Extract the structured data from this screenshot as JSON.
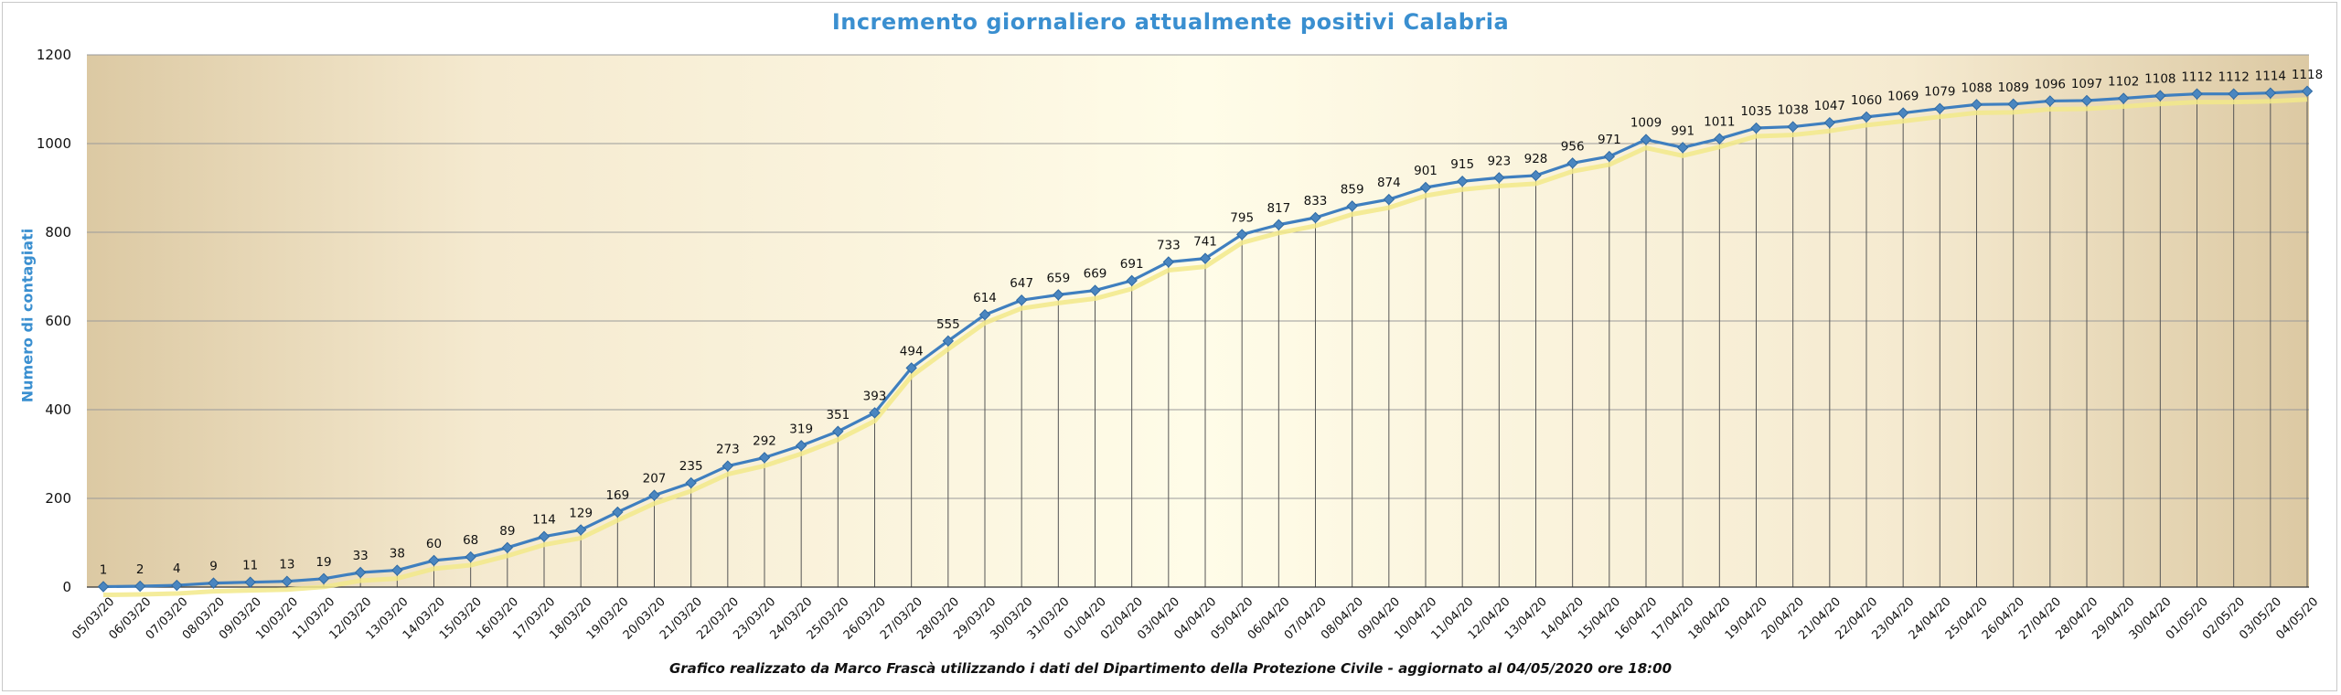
{
  "chart_data": {
    "type": "line",
    "title": "Incremento giornaliero attualmente positivi Calabria",
    "ylabel": "Numero di contagiati",
    "xlabel": "",
    "ylim": [
      0,
      1200
    ],
    "yticks": [
      0,
      200,
      400,
      600,
      800,
      1000,
      1200
    ],
    "grid": true,
    "legend": "none",
    "categories": [
      "05/03/20",
      "06/03/20",
      "07/03/20",
      "08/03/20",
      "09/03/20",
      "10/03/20",
      "11/03/20",
      "12/03/20",
      "13/03/20",
      "14/03/20",
      "15/03/20",
      "16/03/20",
      "17/03/20",
      "18/03/20",
      "19/03/20",
      "20/03/20",
      "21/03/20",
      "22/03/20",
      "23/03/20",
      "24/03/20",
      "25/03/20",
      "26/03/20",
      "27/03/20",
      "28/03/20",
      "29/03/20",
      "30/03/20",
      "31/03/20",
      "01/04/20",
      "02/04/20",
      "03/04/20",
      "04/04/20",
      "05/04/20",
      "06/04/20",
      "07/04/20",
      "08/04/20",
      "09/04/20",
      "10/04/20",
      "11/04/20",
      "12/04/20",
      "13/04/20",
      "14/04/20",
      "15/04/20",
      "16/04/20",
      "17/04/20",
      "18/04/20",
      "19/04/20",
      "20/04/20",
      "21/04/20",
      "22/04/20",
      "23/04/20",
      "24/04/20",
      "25/04/20",
      "26/04/20",
      "27/04/20",
      "28/04/20",
      "29/04/20",
      "30/04/20",
      "01/05/20",
      "02/05/20",
      "03/05/20",
      "04/05/20"
    ],
    "series": [
      {
        "values": [
          1,
          2,
          4,
          9,
          11,
          13,
          19,
          33,
          38,
          60,
          68,
          89,
          114,
          129,
          169,
          207,
          235,
          273,
          292,
          319,
          351,
          393,
          494,
          555,
          614,
          647,
          659,
          669,
          691,
          733,
          741,
          795,
          817,
          833,
          859,
          874,
          901,
          915,
          923,
          928,
          956,
          971,
          1009,
          991,
          1011,
          1035,
          1038,
          1047,
          1060,
          1069,
          1079,
          1088,
          1089,
          1096,
          1097,
          1102,
          1108,
          1112,
          1112,
          1114,
          1118
        ],
        "color": "#3f7fbf",
        "shadow_color": "#f2e98a"
      }
    ],
    "footnote": "Grafico  realizzato da Marco Frascà  utilizzando i dati del Dipartimento  della Protezione Civile  - aggiornato al 04/05/2020 ore 18:00"
  },
  "colors": {
    "title": "#3a8fd0",
    "line": "#3f7fbf",
    "marker": "#4a86c0",
    "gridline": "#9a9a9a",
    "plot_edge": "#dcc9a3",
    "plot_center": "#fffce8"
  }
}
